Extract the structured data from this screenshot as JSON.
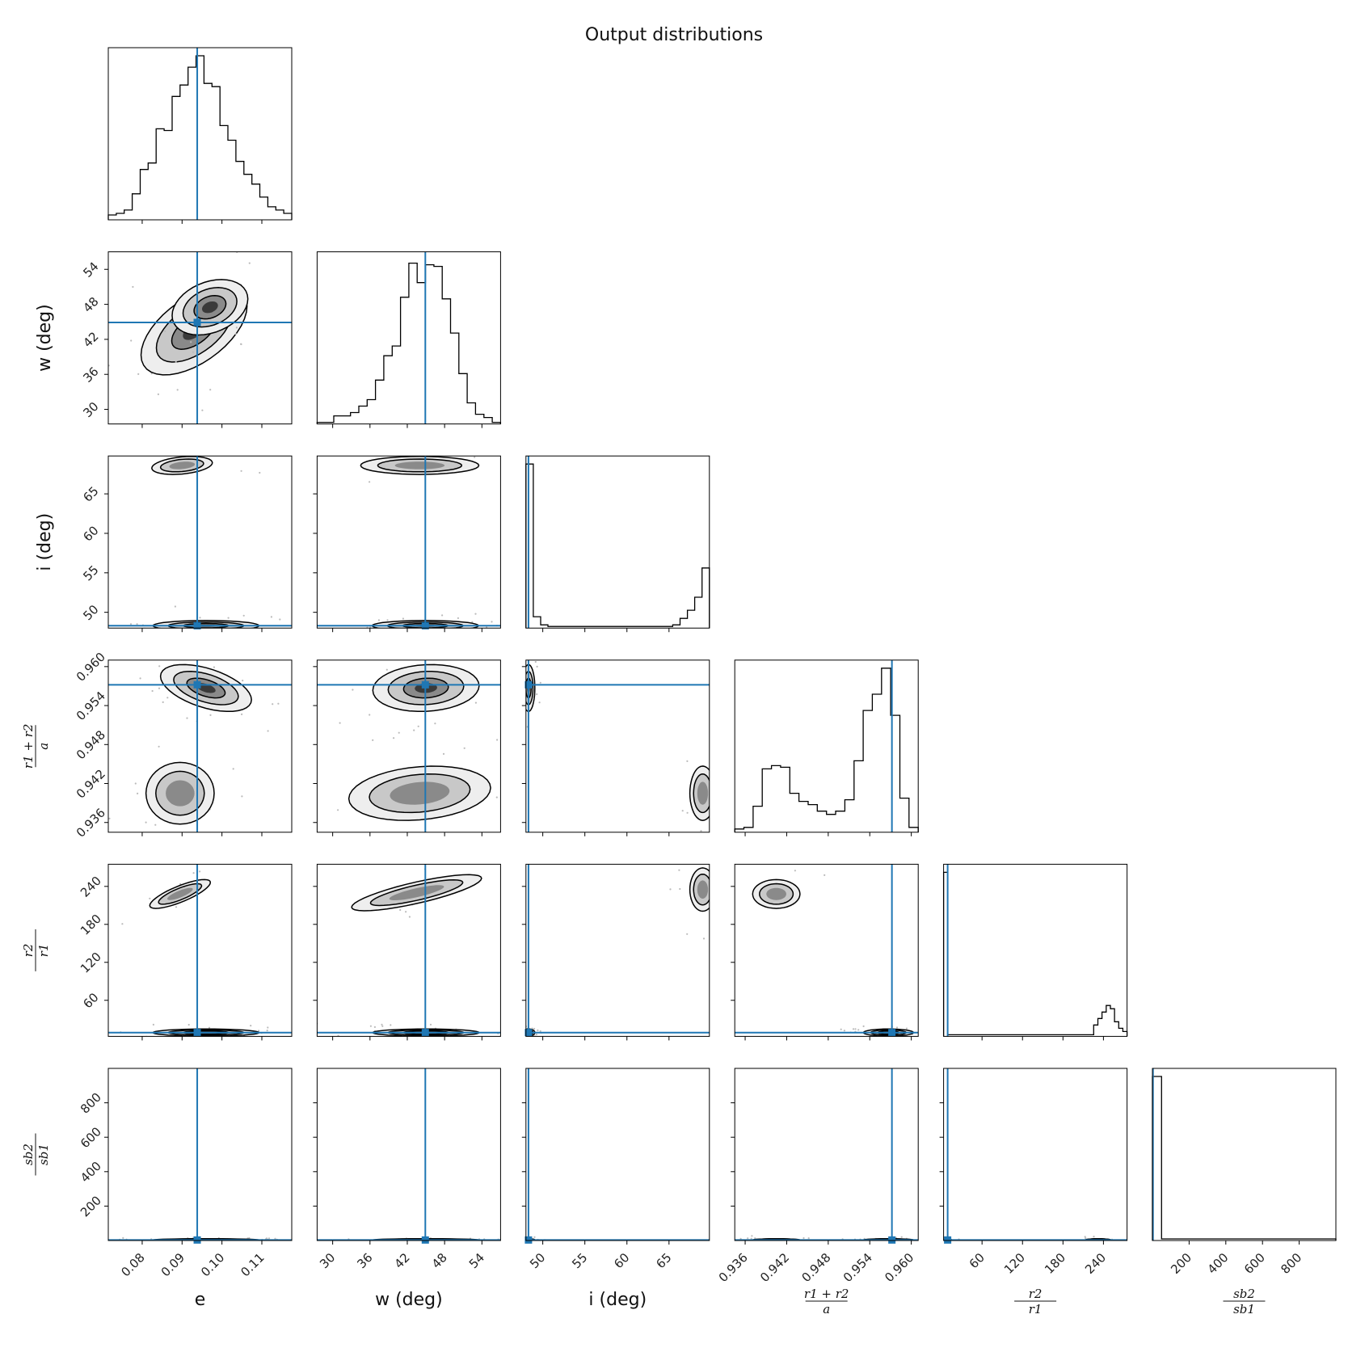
{
  "chart_data": {
    "type": "corner",
    "title": "Output distributions",
    "truth_color": "#1f77b4",
    "parameters": [
      {
        "key": "e",
        "label": "e",
        "range": [
          0.0715,
          0.1175
        ],
        "ticks": [
          0.08,
          0.09,
          0.1,
          0.11
        ],
        "tick_labels": [
          "0.08",
          "0.09",
          "0.10",
          "0.11"
        ],
        "truth": 0.0938
      },
      {
        "key": "w",
        "label": "w (deg)",
        "range": [
          27.5,
          57.0
        ],
        "ticks": [
          30,
          36,
          42,
          48,
          54
        ],
        "tick_labels": [
          "30",
          "36",
          "42",
          "48",
          "54"
        ],
        "truth": 44.9
      },
      {
        "key": "i",
        "label": "i (deg)",
        "range": [
          48.0,
          69.8
        ],
        "ticks": [
          50,
          55,
          60,
          65
        ],
        "tick_labels": [
          "50",
          "55",
          "60",
          "65"
        ],
        "truth": 48.3
      },
      {
        "key": "r1r2a",
        "label_parts": {
          "num": "r1 + r2",
          "den": "a"
        },
        "range": [
          0.9345,
          0.961
        ],
        "ticks": [
          0.936,
          0.942,
          0.948,
          0.954,
          0.96
        ],
        "tick_labels": [
          "0.936",
          "0.942",
          "0.948",
          "0.954",
          "0.960"
        ],
        "truth": 0.9572
      },
      {
        "key": "r2r1",
        "label_parts": {
          "num": "r2",
          "den": "r1"
        },
        "range": [
          3,
          275
        ],
        "ticks": [
          60,
          120,
          180,
          240
        ],
        "tick_labels": [
          "60",
          "120",
          "180",
          "240"
        ],
        "truth": 9
      },
      {
        "key": "sb",
        "label_parts": {
          "num": "sb2",
          "den": "sb1"
        },
        "range": [
          0,
          1000
        ],
        "ticks": [
          200,
          400,
          600,
          800
        ],
        "tick_labels": [
          "200",
          "400",
          "600",
          "800"
        ],
        "truth": 3
      }
    ],
    "histograms": [
      {
        "param": "e",
        "relative_counts": [
          0.02,
          0.03,
          0.05,
          0.15,
          0.3,
          0.34,
          0.55,
          0.54,
          0.75,
          0.82,
          0.93,
          1.0,
          0.83,
          0.81,
          0.57,
          0.48,
          0.35,
          0.27,
          0.21,
          0.13,
          0.07,
          0.05,
          0.03
        ]
      },
      {
        "param": "w",
        "relative_counts": [
          0.0,
          0.0,
          0.04,
          0.04,
          0.06,
          0.1,
          0.14,
          0.26,
          0.41,
          0.47,
          0.77,
          0.98,
          0.86,
          0.97,
          0.96,
          0.76,
          0.55,
          0.3,
          0.12,
          0.05,
          0.03,
          0.0
        ]
      },
      {
        "param": "i",
        "relative_counts": [
          1.0,
          0.06,
          0.01,
          0.0,
          0.0,
          0.0,
          0.0,
          0.0,
          0.0,
          0.0,
          0.0,
          0.0,
          0.0,
          0.0,
          0.0,
          0.0,
          0.0,
          0.0,
          0.0,
          0.0,
          0.01,
          0.05,
          0.1,
          0.18,
          0.36
        ]
      },
      {
        "param": "r1r2a",
        "relative_counts": [
          0.01,
          0.02,
          0.15,
          0.38,
          0.4,
          0.39,
          0.23,
          0.18,
          0.16,
          0.12,
          0.1,
          0.12,
          0.19,
          0.43,
          0.74,
          0.84,
          1.0,
          0.71,
          0.2,
          0.02
        ]
      },
      {
        "param": "r2r1",
        "relative_counts": [
          1.0,
          0.0,
          0.0,
          0.0,
          0.0,
          0.0,
          0.0,
          0.0,
          0.0,
          0.0,
          0.0,
          0.0,
          0.0,
          0.0,
          0.0,
          0.0,
          0.0,
          0.0,
          0.0,
          0.0,
          0.0,
          0.0,
          0.0,
          0.0,
          0.0,
          0.0,
          0.0,
          0.0,
          0.0,
          0.0,
          0.0,
          0.0,
          0.0,
          0.0,
          0.0,
          0.0,
          0.06,
          0.1,
          0.14,
          0.18,
          0.16,
          0.08,
          0.04,
          0.02
        ]
      },
      {
        "param": "sb",
        "relative_counts": [
          1.0,
          0.0,
          0.0,
          0.0,
          0.0,
          0.0,
          0.0,
          0.0,
          0.0,
          0.0,
          0.0,
          0.0,
          0.0,
          0.0,
          0.0,
          0.0,
          0.0,
          0.0,
          0.0,
          0.0
        ]
      }
    ],
    "joint_modes": [
      {
        "x": "e",
        "y": "w",
        "modes": [
          {
            "cx": 0.093,
            "cy": 43.5,
            "sx": 0.007,
            "sy": 4.0,
            "corr": 0.55,
            "w": 1.0
          },
          {
            "cx": 0.097,
            "cy": 47.5,
            "sx": 0.005,
            "sy": 2.5,
            "corr": 0.3,
            "w": 0.6
          }
        ]
      },
      {
        "x": "e",
        "y": "i",
        "modes": [
          {
            "cx": 0.096,
            "cy": 48.3,
            "sx": 0.007,
            "sy": 0.35,
            "corr": 0.0,
            "w": 1.0
          },
          {
            "cx": 0.09,
            "cy": 68.6,
            "sx": 0.004,
            "sy": 0.6,
            "corr": 0.3,
            "w": 0.25
          }
        ]
      },
      {
        "x": "w",
        "y": "i",
        "modes": [
          {
            "cx": 44.9,
            "cy": 48.3,
            "sx": 4.5,
            "sy": 0.35,
            "corr": 0.0,
            "w": 1.0
          },
          {
            "cx": 44.0,
            "cy": 68.6,
            "sx": 5.0,
            "sy": 0.6,
            "corr": 0.0,
            "w": 0.25
          }
        ]
      },
      {
        "x": "e",
        "y": "r1r2a",
        "modes": [
          {
            "cx": 0.096,
            "cy": 0.9567,
            "sx": 0.006,
            "sy": 0.0019,
            "corr": -0.5,
            "w": 1.0
          },
          {
            "cx": 0.0895,
            "cy": 0.9405,
            "sx": 0.0045,
            "sy": 0.0025,
            "corr": 0.0,
            "w": 0.45
          }
        ]
      },
      {
        "x": "w",
        "y": "r1r2a",
        "modes": [
          {
            "cx": 45.0,
            "cy": 0.9567,
            "sx": 4.5,
            "sy": 0.0019,
            "corr": 0.1,
            "w": 1.0
          },
          {
            "cx": 44.0,
            "cy": 0.9405,
            "sx": 6.0,
            "sy": 0.0022,
            "corr": 0.2,
            "w": 0.45
          }
        ]
      },
      {
        "x": "i",
        "y": "r1r2a",
        "modes": [
          {
            "cx": 48.3,
            "cy": 0.9567,
            "sx": 0.4,
            "sy": 0.0019,
            "corr": 0.0,
            "w": 1.0
          },
          {
            "cx": 69.0,
            "cy": 0.9405,
            "sx": 0.8,
            "sy": 0.0022,
            "corr": 0.0,
            "w": 0.35
          }
        ]
      },
      {
        "x": "e",
        "y": "r2r1",
        "modes": [
          {
            "cx": 0.096,
            "cy": 9,
            "sx": 0.007,
            "sy": 3,
            "corr": 0.0,
            "w": 1.0
          },
          {
            "cx": 0.0895,
            "cy": 228,
            "sx": 0.004,
            "sy": 12,
            "corr": 0.8,
            "w": 0.3
          }
        ]
      },
      {
        "x": "w",
        "y": "r2r1",
        "modes": [
          {
            "cx": 45.0,
            "cy": 9,
            "sx": 4.5,
            "sy": 3,
            "corr": 0.0,
            "w": 1.0
          },
          {
            "cx": 43.5,
            "cy": 230,
            "sx": 5.5,
            "sy": 15,
            "corr": 0.8,
            "w": 0.3
          }
        ]
      },
      {
        "x": "i",
        "y": "r2r1",
        "modes": [
          {
            "cx": 48.3,
            "cy": 9,
            "sx": 0.4,
            "sy": 3,
            "corr": 0.0,
            "w": 1.0
          },
          {
            "cx": 69.0,
            "cy": 235,
            "sx": 0.8,
            "sy": 18,
            "corr": 0.0,
            "w": 0.3
          }
        ]
      },
      {
        "x": "r1r2a",
        "y": "r2r1",
        "modes": [
          {
            "cx": 0.9567,
            "cy": 9,
            "sx": 0.0019,
            "sy": 3,
            "corr": 0.0,
            "w": 1.0
          },
          {
            "cx": 0.9405,
            "cy": 228,
            "sx": 0.0018,
            "sy": 12,
            "corr": 0.0,
            "w": 0.3
          }
        ]
      },
      {
        "x": "e",
        "y": "sb",
        "modes": [
          {
            "cx": 0.096,
            "cy": 3,
            "sx": 0.007,
            "sy": 4,
            "corr": 0.0,
            "w": 1.0
          }
        ]
      },
      {
        "x": "w",
        "y": "sb",
        "modes": [
          {
            "cx": 45.0,
            "cy": 3,
            "sx": 4.5,
            "sy": 4,
            "corr": 0.0,
            "w": 1.0
          }
        ]
      },
      {
        "x": "i",
        "y": "sb",
        "modes": [
          {
            "cx": 48.3,
            "cy": 3,
            "sx": 0.4,
            "sy": 4,
            "corr": 0.0,
            "w": 1.0
          }
        ]
      },
      {
        "x": "r1r2a",
        "y": "sb",
        "modes": [
          {
            "cx": 0.9567,
            "cy": 3,
            "sx": 0.0019,
            "sy": 4,
            "corr": 0.0,
            "w": 1.0
          },
          {
            "cx": 0.9405,
            "cy": 3,
            "sx": 0.0018,
            "sy": 4,
            "corr": 0.0,
            "w": 0.4
          }
        ]
      },
      {
        "x": "r2r1",
        "y": "sb",
        "modes": [
          {
            "cx": 9,
            "cy": 3,
            "sx": 3,
            "sy": 4,
            "corr": 0.0,
            "w": 1.0
          },
          {
            "cx": 232,
            "cy": 3,
            "sx": 10,
            "sy": 4,
            "corr": 0.0,
            "w": 0.3
          }
        ]
      }
    ]
  }
}
